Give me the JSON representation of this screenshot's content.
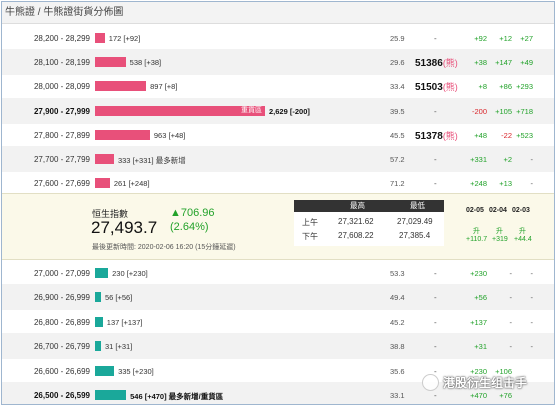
{
  "title": "牛熊證 / 牛熊證街貨分佈圖",
  "bear_marker": "(熊)",
  "dash": "-",
  "panel": {
    "index_label": "恒生指數",
    "index_value": "27,493.7",
    "change": "▲706.96",
    "change_pct": "(2.64%)",
    "updated": "最後更新時間: 2020-02-06 16:20 (15分鐘延遲)",
    "hl_header_high": "最高",
    "hl_header_low": "最低",
    "am_label": "上午",
    "pm_label": "下午",
    "am_high": "27,321.62",
    "am_low": "27,029.49",
    "pm_high": "27,608.22",
    "pm_low": "27,385.4",
    "dates": [
      "02-05",
      "02-04",
      "02-03"
    ],
    "rise": [
      "升",
      "升",
      "升"
    ],
    "points": [
      "+110.7",
      "+319",
      "+44.4"
    ]
  },
  "bear_rows": [
    {
      "range": "28,200 - 28,299",
      "bar_value": 172,
      "label": "172 [+92]",
      "ratio": "25.9",
      "strike": "",
      "c1": "+92",
      "c2": "+12",
      "c3": "+27"
    },
    {
      "range": "28,100 - 28,199",
      "bar_value": 538,
      "label": "538 [+38]",
      "ratio": "29.6",
      "strike": "51386",
      "c1": "+38",
      "c2": "+147",
      "c3": "+49"
    },
    {
      "range": "28,000 - 28,099",
      "bar_value": 897,
      "label": "897 [+8]",
      "ratio": "33.4",
      "strike": "51503",
      "c1": "+8",
      "c2": "+86",
      "c3": "+293"
    },
    {
      "range": "27,900 - 27,999",
      "bar_value": 2629,
      "label": "2,629 [-200]",
      "inner": "重貨區",
      "ratio": "39.5",
      "strike": "",
      "c1": "-200",
      "c2": "+105",
      "c3": "+718",
      "bold": true
    },
    {
      "range": "27,800 - 27,899",
      "bar_value": 963,
      "label": "963 [+48]",
      "ratio": "45.5",
      "strike": "51378",
      "c1": "+48",
      "c2": "-22",
      "c3": "+523"
    },
    {
      "range": "27,700 - 27,799",
      "bar_value": 333,
      "label": "333 [+331] 最多新增",
      "ratio": "57.2",
      "strike": "",
      "c1": "+331",
      "c2": "+2",
      "c3": "-"
    },
    {
      "range": "27,600 - 27,699",
      "bar_value": 261,
      "label": "261 [+248]",
      "ratio": "71.2",
      "strike": "",
      "c1": "+248",
      "c2": "+13",
      "c3": "-"
    }
  ],
  "bull_rows": [
    {
      "range": "27,000 - 27,099",
      "bar_value": 230,
      "label": "230 [+230]",
      "ratio": "53.3",
      "c1": "+230",
      "c2": "-",
      "c3": "-"
    },
    {
      "range": "26,900 - 26,999",
      "bar_value": 56,
      "label": "56 [+56]",
      "ratio": "49.4",
      "c1": "+56",
      "c2": "-",
      "c3": "-"
    },
    {
      "range": "26,800 - 26,899",
      "bar_value": 137,
      "label": "137 [+137]",
      "ratio": "45.2",
      "c1": "+137",
      "c2": "-",
      "c3": "-"
    },
    {
      "range": "26,700 - 26,799",
      "bar_value": 31,
      "label": "31 [+31]",
      "ratio": "38.8",
      "c1": "+31",
      "c2": "-",
      "c3": "-"
    },
    {
      "range": "26,600 - 26,699",
      "bar_value": 335,
      "label": "335 [+230]",
      "ratio": "35.6",
      "c1": "+230",
      "c2": "+106",
      "c3": ""
    },
    {
      "range": "26,500 - 26,599",
      "bar_value": 546,
      "label": "546 [+470] 最多新增/重貨區",
      "ratio": "33.1",
      "c1": "+470",
      "c2": "+76",
      "c3": "",
      "bold": true
    }
  ],
  "watermark": "港股衍生组击手",
  "colors": {
    "bear": "#e8507a",
    "bull": "#1aa89a",
    "up": "#22a22a",
    "down": "#d9262b"
  }
}
